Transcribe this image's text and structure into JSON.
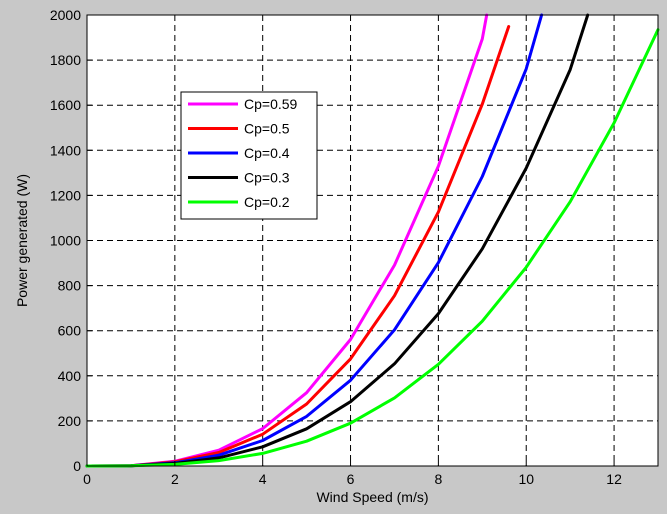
{
  "chart_data": {
    "type": "line",
    "xlabel": "Wind Speed (m/s)",
    "ylabel": "Power generated (W)",
    "xlim": [
      0,
      13
    ],
    "ylim": [
      0,
      2000
    ],
    "xticks": [
      "0",
      "2",
      "4",
      "6",
      "8",
      "10",
      "12"
    ],
    "yticks": [
      "0",
      "200",
      "400",
      "600",
      "800",
      "1000",
      "1200",
      "1400",
      "1600",
      "1800",
      "2000"
    ],
    "grid": true,
    "legend_position": "upper-left",
    "series": [
      {
        "name": "Cp=0.59",
        "color": "#ff00ff",
        "x": [
          0,
          1,
          2,
          3,
          4,
          5,
          6,
          7,
          8,
          9,
          9.1
        ],
        "y": [
          0,
          1,
          21,
          70,
          166,
          325,
          561,
          891,
          1330,
          1894,
          2000
        ]
      },
      {
        "name": "Cp=0.5",
        "color": "#ff0000",
        "x": [
          0,
          1,
          2,
          3,
          4,
          5,
          6,
          7,
          8,
          9,
          9.6
        ],
        "y": [
          0,
          1,
          18,
          60,
          141,
          275,
          475,
          755,
          1127,
          1605,
          1949
        ]
      },
      {
        "name": "Cp=0.4",
        "color": "#0000ff",
        "x": [
          0,
          1,
          2,
          3,
          4,
          5,
          6,
          7,
          8,
          9,
          10,
          10.35
        ],
        "y": [
          0,
          1,
          14,
          48,
          113,
          220,
          380,
          604,
          902,
          1284,
          1761,
          2000
        ]
      },
      {
        "name": "Cp=0.3",
        "color": "#000000",
        "x": [
          0,
          1,
          2,
          3,
          4,
          5,
          6,
          7,
          8,
          9,
          10,
          11,
          11.4
        ],
        "y": [
          0,
          1,
          11,
          36,
          85,
          165,
          285,
          453,
          676,
          963,
          1321,
          1758,
          2000
        ]
      },
      {
        "name": "Cp=0.2",
        "color": "#00ff00",
        "x": [
          0,
          1,
          2,
          3,
          4,
          5,
          6,
          7,
          8,
          9,
          10,
          11,
          12,
          13
        ],
        "y": [
          0,
          1,
          7,
          24,
          56,
          110,
          190,
          302,
          451,
          642,
          881,
          1172,
          1522,
          1935
        ]
      }
    ]
  }
}
